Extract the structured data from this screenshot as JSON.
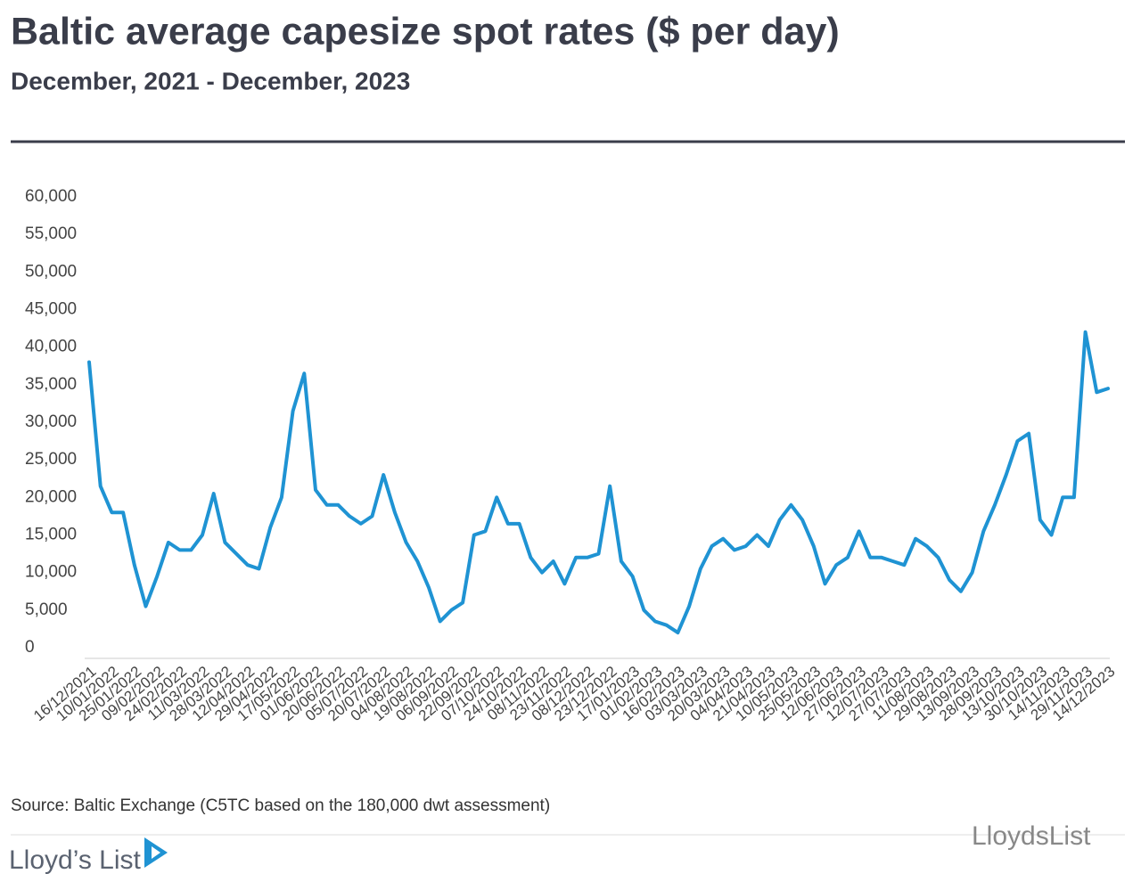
{
  "chart_data": {
    "type": "line",
    "title": "Baltic average capesize spot rates ($ per day)",
    "subtitle": "December, 2021 - December, 2023",
    "source": "Source: Baltic Exchange (C5TC based on the 180,000 dwt assessment)",
    "logo": "Lloyd’s List",
    "watermark": "LloydsList",
    "categories": [
      "16/12/2021",
      null,
      "10/01/2022",
      null,
      "25/01/2022",
      null,
      "09/02/2022",
      null,
      "24/02/2022",
      null,
      "11/03/2022",
      null,
      "28/03/2022",
      null,
      "12/04/2022",
      null,
      "29/04/2022",
      null,
      "17/05/2022",
      null,
      "01/06/2022",
      null,
      "20/06/2022",
      null,
      "05/07/2022",
      null,
      "20/07/2022",
      null,
      "04/08/2022",
      null,
      "19/08/2022",
      null,
      "06/09/2022",
      null,
      "22/09/2022",
      null,
      "07/10/2022",
      null,
      "24/10/2022",
      null,
      "08/11/2022",
      null,
      "23/11/2022",
      null,
      "08/12/2022",
      null,
      "23/12/2022",
      null,
      "17/01/2023",
      null,
      "01/02/2023",
      null,
      "16/02/2023",
      null,
      "03/03/2023",
      null,
      "20/03/2023",
      null,
      "04/04/2023",
      null,
      "21/04/2023",
      null,
      "10/05/2023",
      null,
      "25/05/2023",
      null,
      "12/06/2023",
      null,
      "27/06/2023",
      null,
      "12/07/2023",
      null,
      "27/07/2023",
      null,
      "11/08/2023",
      null,
      "29/08/2023",
      null,
      "13/09/2023",
      null,
      "28/09/2023",
      null,
      "13/10/2023",
      null,
      "30/10/2023",
      null,
      "14/11/2023",
      null,
      "29/11/2023",
      null,
      "14/12/2023"
    ],
    "series": [
      {
        "name": "Capesize spot rate",
        "color": "#1f93d3",
        "values": [
          38000,
          21500,
          18000,
          18000,
          11000,
          5500,
          9500,
          14000,
          13000,
          13000,
          15000,
          20500,
          14000,
          12500,
          11000,
          10500,
          16000,
          20000,
          31500,
          36500,
          21000,
          19000,
          19000,
          17500,
          16500,
          17500,
          23000,
          18000,
          14000,
          11500,
          8000,
          3500,
          5000,
          6000,
          15000,
          15500,
          20000,
          16500,
          16500,
          12000,
          10000,
          11500,
          8500,
          12000,
          12000,
          12500,
          21500,
          11500,
          9500,
          5000,
          3500,
          3000,
          2000,
          5500,
          10500,
          13500,
          14500,
          13000,
          13500,
          15000,
          13500,
          17000,
          19000,
          17000,
          13500,
          8500,
          11000,
          12000,
          15500,
          12000,
          12000,
          11500,
          11000,
          14500,
          13500,
          12000,
          9000,
          7500,
          10000,
          15500,
          19000,
          23000,
          27500,
          28500,
          17000,
          15000,
          20000,
          20000,
          42000,
          34000,
          34500
        ]
      }
    ],
    "ylim": [
      0,
      60000
    ],
    "yticks": [
      0,
      {
        "value": 5000,
        "label": "5,000"
      },
      {
        "value": 10000,
        "label": "10,000"
      },
      {
        "value": 15000,
        "label": "15,000"
      },
      {
        "value": 20000,
        "label": "20,000"
      },
      {
        "value": 25000,
        "label": "25,000"
      },
      {
        "value": 30000,
        "label": "30,000"
      },
      {
        "value": 35000,
        "label": "35,000"
      },
      {
        "value": 40000,
        "label": "40,000"
      },
      {
        "value": 45000,
        "label": "45,000"
      },
      {
        "value": 50000,
        "label": "50,000"
      },
      {
        "value": 55000,
        "label": "55,000"
      },
      {
        "value": 60000,
        "label": "60,000"
      }
    ],
    "grid": false
  }
}
